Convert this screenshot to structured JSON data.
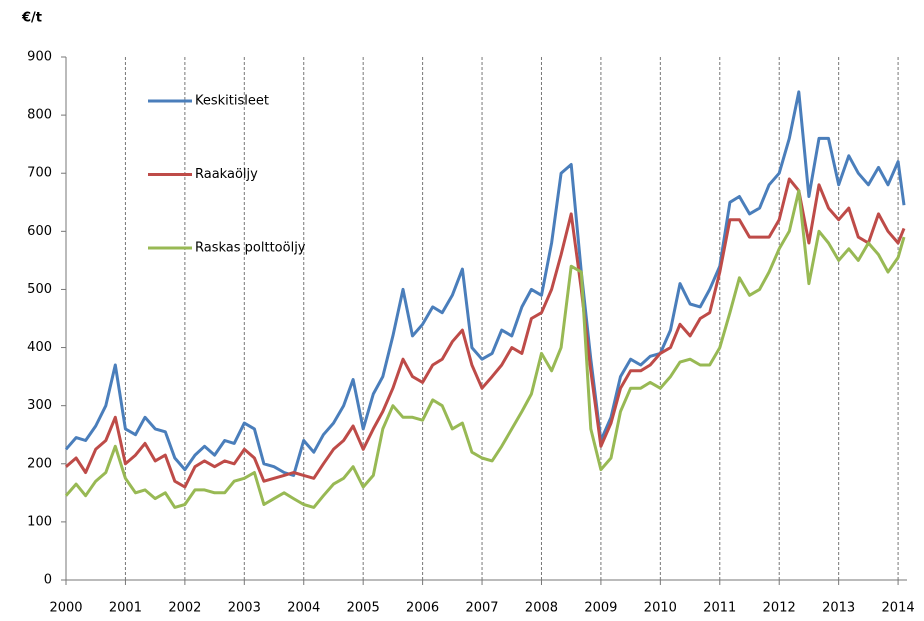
{
  "chart_data": {
    "type": "line",
    "y_label": "€/t",
    "x": [
      2000,
      2000.17,
      2000.33,
      2000.5,
      2000.67,
      2000.83,
      2001,
      2001.17,
      2001.33,
      2001.5,
      2001.67,
      2001.83,
      2002,
      2002.17,
      2002.33,
      2002.5,
      2002.67,
      2002.83,
      2003,
      2003.17,
      2003.33,
      2003.5,
      2003.67,
      2003.83,
      2004,
      2004.17,
      2004.33,
      2004.5,
      2004.67,
      2004.83,
      2005,
      2005.17,
      2005.33,
      2005.5,
      2005.67,
      2005.83,
      2006,
      2006.17,
      2006.33,
      2006.5,
      2006.67,
      2006.83,
      2007,
      2007.17,
      2007.33,
      2007.5,
      2007.67,
      2007.83,
      2008,
      2008.17,
      2008.33,
      2008.5,
      2008.67,
      2008.83,
      2009,
      2009.17,
      2009.33,
      2009.5,
      2009.67,
      2009.83,
      2010,
      2010.17,
      2010.33,
      2010.5,
      2010.67,
      2010.83,
      2011,
      2011.17,
      2011.33,
      2011.5,
      2011.67,
      2011.83,
      2012,
      2012.17,
      2012.33,
      2012.5,
      2012.67,
      2012.83,
      2013,
      2013.17,
      2013.33,
      2013.5,
      2013.67,
      2013.83,
      2014,
      2014.1
    ],
    "series": [
      {
        "name": "Keskitisleet",
        "color": "#4a7ebb",
        "values": [
          225,
          245,
          240,
          265,
          300,
          370,
          260,
          250,
          280,
          260,
          255,
          210,
          190,
          215,
          230,
          215,
          240,
          235,
          270,
          260,
          200,
          195,
          185,
          180,
          240,
          220,
          250,
          270,
          300,
          345,
          260,
          320,
          350,
          420,
          500,
          420,
          440,
          470,
          460,
          490,
          535,
          400,
          380,
          390,
          430,
          420,
          470,
          500,
          490,
          580,
          700,
          715,
          530,
          380,
          240,
          280,
          350,
          380,
          370,
          385,
          390,
          430,
          510,
          475,
          470,
          500,
          540,
          650,
          660,
          630,
          640,
          680,
          700,
          760,
          840,
          660,
          760,
          760,
          680,
          730,
          700,
          680,
          710,
          680,
          720,
          645
        ]
      },
      {
        "name": "Raakaöljy",
        "color": "#be4b48",
        "values": [
          195,
          210,
          185,
          225,
          240,
          280,
          200,
          215,
          235,
          205,
          215,
          170,
          160,
          195,
          205,
          195,
          205,
          200,
          225,
          210,
          170,
          175,
          180,
          185,
          180,
          175,
          200,
          225,
          240,
          265,
          225,
          260,
          290,
          330,
          380,
          350,
          340,
          370,
          380,
          410,
          430,
          370,
          330,
          350,
          370,
          400,
          390,
          450,
          460,
          500,
          560,
          630,
          500,
          360,
          230,
          270,
          330,
          360,
          360,
          370,
          390,
          400,
          440,
          420,
          450,
          460,
          530,
          620,
          620,
          590,
          590,
          590,
          620,
          690,
          670,
          580,
          680,
          640,
          620,
          640,
          590,
          580,
          630,
          600,
          580,
          605
        ]
      },
      {
        "name": "Raskas polttoöljy",
        "color": "#98b954",
        "values": [
          145,
          165,
          145,
          170,
          185,
          230,
          175,
          150,
          155,
          140,
          150,
          125,
          130,
          155,
          155,
          150,
          150,
          170,
          175,
          185,
          130,
          140,
          150,
          140,
          130,
          125,
          145,
          165,
          175,
          195,
          160,
          180,
          260,
          300,
          280,
          280,
          275,
          310,
          300,
          260,
          270,
          220,
          210,
          205,
          230,
          260,
          290,
          320,
          390,
          360,
          400,
          540,
          530,
          260,
          190,
          210,
          290,
          330,
          330,
          340,
          330,
          350,
          375,
          380,
          370,
          370,
          400,
          460,
          520,
          490,
          500,
          530,
          570,
          600,
          670,
          510,
          600,
          580,
          550,
          570,
          550,
          580,
          560,
          530,
          555,
          590
        ]
      }
    ],
    "xlim": [
      2000,
      2014.15
    ],
    "xticks": [
      2000,
      2001,
      2002,
      2003,
      2004,
      2005,
      2006,
      2007,
      2008,
      2009,
      2010,
      2011,
      2012,
      2013,
      2014
    ],
    "ylim": [
      0,
      900
    ],
    "yticks": [
      0,
      100,
      200,
      300,
      400,
      500,
      600,
      700,
      800,
      900
    ],
    "grid": "x"
  }
}
